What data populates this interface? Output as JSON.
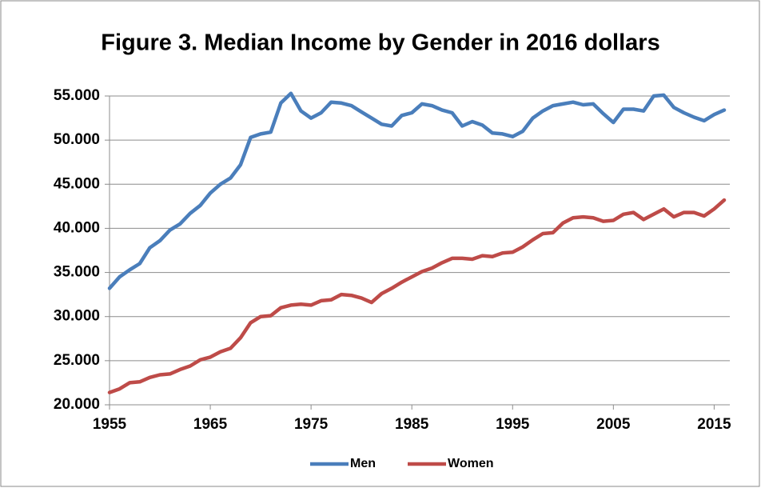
{
  "chart_data": {
    "type": "line",
    "title": "Figure 3. Median Income by Gender in 2016 dollars",
    "x": [
      1955,
      1956,
      1957,
      1958,
      1959,
      1960,
      1961,
      1962,
      1963,
      1964,
      1965,
      1966,
      1967,
      1968,
      1969,
      1970,
      1971,
      1972,
      1973,
      1974,
      1975,
      1976,
      1977,
      1978,
      1979,
      1980,
      1981,
      1982,
      1983,
      1984,
      1985,
      1986,
      1987,
      1988,
      1989,
      1990,
      1991,
      1992,
      1993,
      1994,
      1995,
      1996,
      1997,
      1998,
      1999,
      2000,
      2001,
      2002,
      2003,
      2004,
      2005,
      2006,
      2007,
      2008,
      2009,
      2010,
      2011,
      2012,
      2013,
      2014,
      2015,
      2016
    ],
    "series": [
      {
        "name": "Men",
        "color": "#4a7ebb",
        "values": [
          33200,
          34500,
          35300,
          36000,
          37800,
          38600,
          39800,
          40500,
          41700,
          42600,
          44000,
          45000,
          45700,
          47200,
          50300,
          50700,
          50900,
          54200,
          55300,
          53300,
          52500,
          53100,
          54300,
          54200,
          53900,
          53200,
          52500,
          51800,
          51600,
          52800,
          53100,
          54100,
          53900,
          53400,
          53100,
          51600,
          52100,
          51700,
          50800,
          50700,
          50400,
          51000,
          52500,
          53300,
          53900,
          54100,
          54300,
          54000,
          54100,
          53000,
          52000,
          53500,
          53500,
          53300,
          55000,
          55100,
          53700,
          53100,
          52600,
          52200,
          52900,
          53400
        ]
      },
      {
        "name": "Women",
        "color": "#be4b48",
        "values": [
          21400,
          21800,
          22500,
          22600,
          23100,
          23400,
          23500,
          24000,
          24400,
          25100,
          25400,
          26000,
          26400,
          27600,
          29300,
          30000,
          30100,
          31000,
          31300,
          31400,
          31300,
          31800,
          31900,
          32500,
          32400,
          32100,
          31600,
          32600,
          33200,
          33900,
          34500,
          35100,
          35500,
          36100,
          36600,
          36600,
          36500,
          36900,
          36800,
          37200,
          37300,
          37900,
          38700,
          39400,
          39500,
          40600,
          41200,
          41300,
          41200,
          40800,
          40900,
          41600,
          41800,
          41000,
          41600,
          42200,
          41300,
          41800,
          41800,
          41400,
          42200,
          43200
        ]
      }
    ],
    "xlim": [
      1955,
      2016
    ],
    "xticks": [
      1955,
      1965,
      1975,
      1985,
      1995,
      2005,
      2015
    ],
    "ylim": [
      20000,
      55000
    ],
    "yticks": [
      {
        "value": 20000,
        "label": "20.000"
      },
      {
        "value": 25000,
        "label": "25.000"
      },
      {
        "value": 30000,
        "label": "30.000"
      },
      {
        "value": 35000,
        "label": "35.000"
      },
      {
        "value": 40000,
        "label": "40.000"
      },
      {
        "value": 45000,
        "label": "45.000"
      },
      {
        "value": 50000,
        "label": "50.000"
      },
      {
        "value": 55000,
        "label": "55.000"
      }
    ],
    "grid": true,
    "legend": "bottom"
  }
}
